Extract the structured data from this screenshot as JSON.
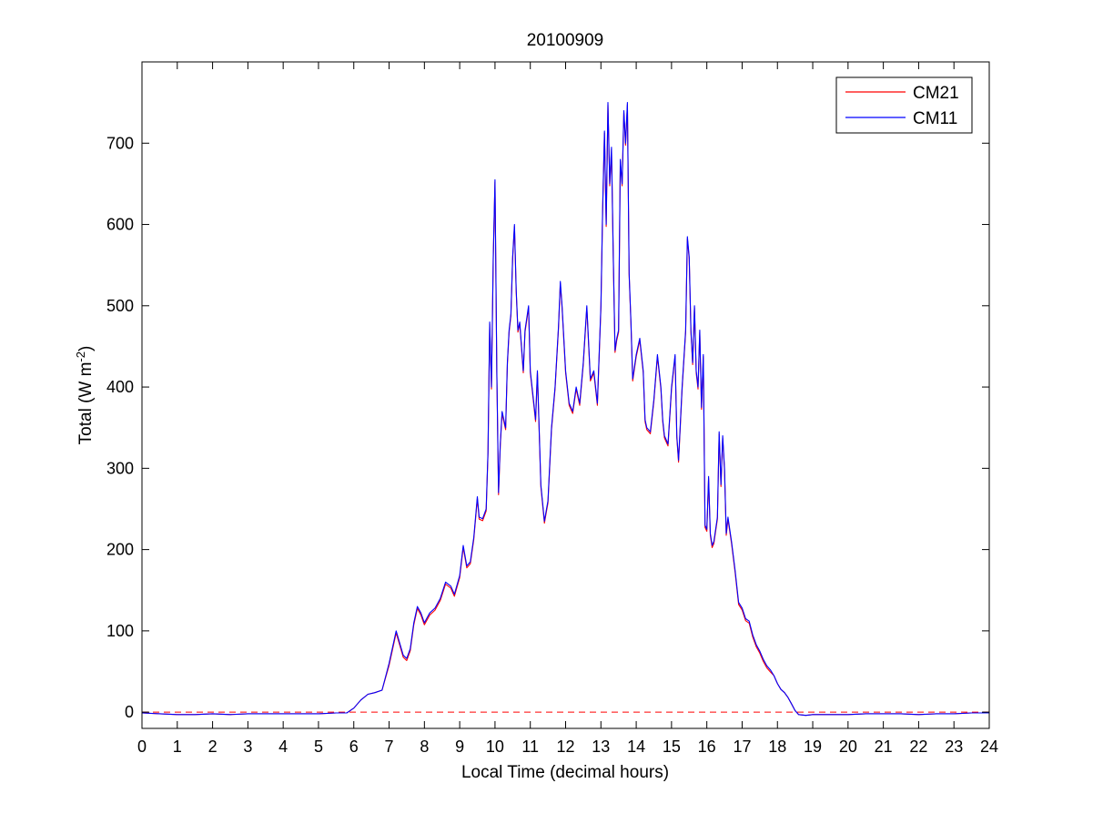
{
  "chart_data": {
    "type": "line",
    "title": "20100909",
    "xlabel": "Local Time (decimal hours)",
    "ylabel": {
      "prefix": "Total (W m",
      "sup": "-2",
      "suffix": ")"
    },
    "xlim": [
      0,
      24
    ],
    "ylim": [
      -20,
      800
    ],
    "x_ticks": [
      0,
      1,
      2,
      3,
      4,
      5,
      6,
      7,
      8,
      9,
      10,
      11,
      12,
      13,
      14,
      15,
      16,
      17,
      18,
      19,
      20,
      21,
      22,
      23,
      24
    ],
    "y_ticks": [
      0,
      100,
      200,
      300,
      400,
      500,
      600,
      700
    ],
    "grid": false,
    "legend_position": "top-right",
    "reference_line": {
      "y": 0,
      "style": "dashed",
      "color": "#ff0000"
    },
    "series": [
      {
        "name": "CM21",
        "color": "#ff0000"
      },
      {
        "name": "CM11",
        "color": "#0000ff",
        "points": [
          [
            0,
            -1
          ],
          [
            0.5,
            -2
          ],
          [
            1,
            -3
          ],
          [
            1.5,
            -3
          ],
          [
            2,
            -2
          ],
          [
            2.5,
            -3
          ],
          [
            3,
            -2
          ],
          [
            3.5,
            -2
          ],
          [
            4,
            -2
          ],
          [
            4.5,
            -2
          ],
          [
            5,
            -2
          ],
          [
            5.5,
            -1
          ],
          [
            5.8,
            -1
          ],
          [
            6.0,
            5
          ],
          [
            6.2,
            15
          ],
          [
            6.4,
            22
          ],
          [
            6.6,
            24
          ],
          [
            6.8,
            27
          ],
          [
            7.0,
            60
          ],
          [
            7.1,
            80
          ],
          [
            7.2,
            100
          ],
          [
            7.3,
            85
          ],
          [
            7.4,
            70
          ],
          [
            7.5,
            66
          ],
          [
            7.6,
            78
          ],
          [
            7.7,
            110
          ],
          [
            7.8,
            130
          ],
          [
            7.9,
            122
          ],
          [
            8.0,
            110
          ],
          [
            8.15,
            122
          ],
          [
            8.3,
            128
          ],
          [
            8.45,
            140
          ],
          [
            8.6,
            160
          ],
          [
            8.75,
            155
          ],
          [
            8.85,
            145
          ],
          [
            9.0,
            168
          ],
          [
            9.1,
            205
          ],
          [
            9.2,
            180
          ],
          [
            9.3,
            185
          ],
          [
            9.4,
            215
          ],
          [
            9.5,
            265
          ],
          [
            9.55,
            240
          ],
          [
            9.65,
            238
          ],
          [
            9.75,
            250
          ],
          [
            9.8,
            320
          ],
          [
            9.85,
            480
          ],
          [
            9.9,
            400
          ],
          [
            9.95,
            560
          ],
          [
            10.0,
            655
          ],
          [
            10.05,
            420
          ],
          [
            10.1,
            270
          ],
          [
            10.15,
            330
          ],
          [
            10.2,
            370
          ],
          [
            10.3,
            350
          ],
          [
            10.35,
            430
          ],
          [
            10.4,
            470
          ],
          [
            10.45,
            490
          ],
          [
            10.5,
            560
          ],
          [
            10.55,
            600
          ],
          [
            10.6,
            520
          ],
          [
            10.65,
            470
          ],
          [
            10.7,
            480
          ],
          [
            10.8,
            420
          ],
          [
            10.85,
            470
          ],
          [
            10.95,
            500
          ],
          [
            11.0,
            420
          ],
          [
            11.1,
            380
          ],
          [
            11.15,
            360
          ],
          [
            11.2,
            420
          ],
          [
            11.3,
            280
          ],
          [
            11.4,
            235
          ],
          [
            11.5,
            260
          ],
          [
            11.6,
            350
          ],
          [
            11.7,
            400
          ],
          [
            11.8,
            475
          ],
          [
            11.85,
            530
          ],
          [
            11.9,
            500
          ],
          [
            12.0,
            420
          ],
          [
            12.1,
            380
          ],
          [
            12.2,
            370
          ],
          [
            12.3,
            400
          ],
          [
            12.4,
            380
          ],
          [
            12.5,
            430
          ],
          [
            12.6,
            500
          ],
          [
            12.7,
            410
          ],
          [
            12.8,
            420
          ],
          [
            12.9,
            380
          ],
          [
            13.0,
            500
          ],
          [
            13.05,
            620
          ],
          [
            13.1,
            715
          ],
          [
            13.15,
            600
          ],
          [
            13.2,
            750
          ],
          [
            13.25,
            650
          ],
          [
            13.3,
            695
          ],
          [
            13.35,
            560
          ],
          [
            13.4,
            445
          ],
          [
            13.45,
            460
          ],
          [
            13.5,
            470
          ],
          [
            13.55,
            680
          ],
          [
            13.6,
            650
          ],
          [
            13.65,
            740
          ],
          [
            13.7,
            700
          ],
          [
            13.75,
            750
          ],
          [
            13.8,
            540
          ],
          [
            13.85,
            480
          ],
          [
            13.9,
            410
          ],
          [
            14.0,
            440
          ],
          [
            14.1,
            460
          ],
          [
            14.2,
            420
          ],
          [
            14.25,
            360
          ],
          [
            14.3,
            350
          ],
          [
            14.4,
            345
          ],
          [
            14.5,
            385
          ],
          [
            14.6,
            440
          ],
          [
            14.7,
            400
          ],
          [
            14.75,
            360
          ],
          [
            14.8,
            340
          ],
          [
            14.9,
            330
          ],
          [
            15.0,
            400
          ],
          [
            15.1,
            440
          ],
          [
            15.15,
            340
          ],
          [
            15.2,
            310
          ],
          [
            15.3,
            400
          ],
          [
            15.4,
            470
          ],
          [
            15.45,
            585
          ],
          [
            15.5,
            560
          ],
          [
            15.55,
            470
          ],
          [
            15.6,
            430
          ],
          [
            15.65,
            500
          ],
          [
            15.7,
            420
          ],
          [
            15.75,
            400
          ],
          [
            15.8,
            470
          ],
          [
            15.85,
            375
          ],
          [
            15.9,
            440
          ],
          [
            15.95,
            230
          ],
          [
            16.0,
            225
          ],
          [
            16.05,
            290
          ],
          [
            16.1,
            220
          ],
          [
            16.15,
            205
          ],
          [
            16.2,
            210
          ],
          [
            16.3,
            240
          ],
          [
            16.35,
            345
          ],
          [
            16.4,
            280
          ],
          [
            16.45,
            340
          ],
          [
            16.5,
            300
          ],
          [
            16.55,
            220
          ],
          [
            16.6,
            240
          ],
          [
            16.7,
            210
          ],
          [
            16.8,
            175
          ],
          [
            16.9,
            135
          ],
          [
            17.0,
            128
          ],
          [
            17.1,
            115
          ],
          [
            17.2,
            112
          ],
          [
            17.3,
            95
          ],
          [
            17.4,
            83
          ],
          [
            17.5,
            75
          ],
          [
            17.6,
            65
          ],
          [
            17.7,
            57
          ],
          [
            17.8,
            52
          ],
          [
            17.9,
            45
          ],
          [
            18.0,
            35
          ],
          [
            18.1,
            28
          ],
          [
            18.2,
            24
          ],
          [
            18.3,
            18
          ],
          [
            18.4,
            10
          ],
          [
            18.5,
            2
          ],
          [
            18.6,
            -3
          ],
          [
            18.8,
            -4
          ],
          [
            19,
            -3
          ],
          [
            19.5,
            -3
          ],
          [
            20,
            -3
          ],
          [
            20.5,
            -2
          ],
          [
            21,
            -2
          ],
          [
            21.5,
            -2
          ],
          [
            22,
            -3
          ],
          [
            22.5,
            -2
          ],
          [
            23,
            -2
          ],
          [
            23.5,
            -1
          ],
          [
            24,
            -1
          ]
        ]
      }
    ]
  }
}
